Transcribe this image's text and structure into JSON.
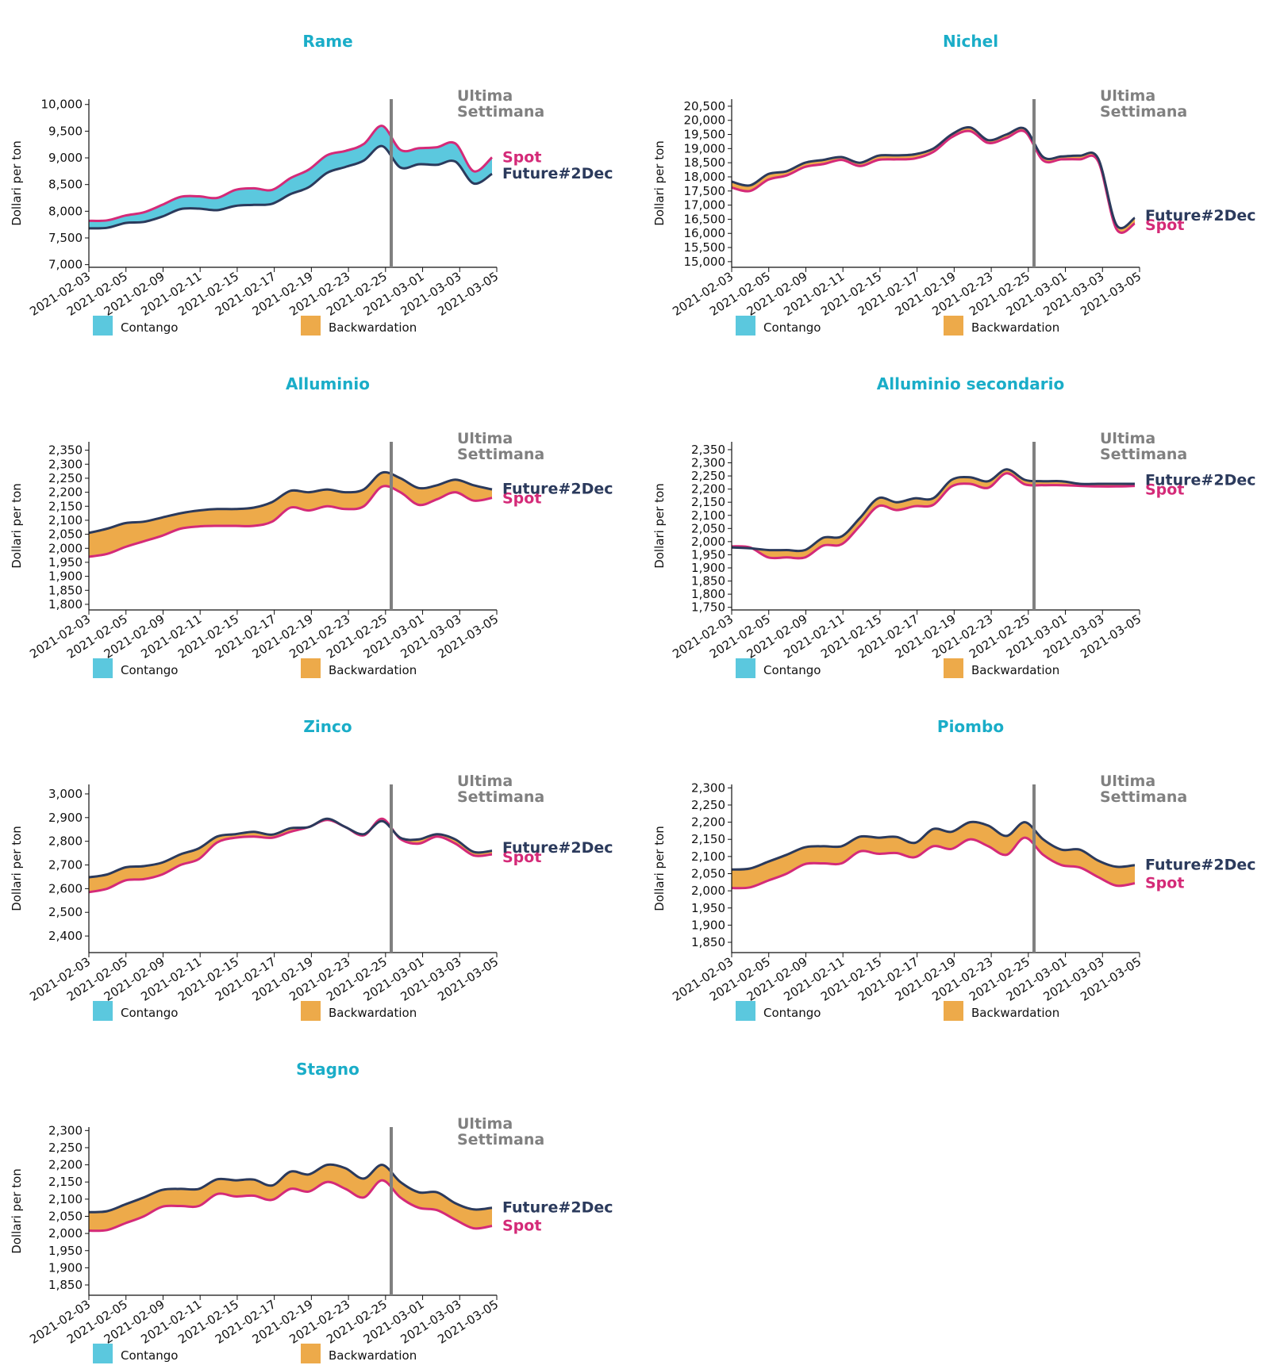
{
  "chart_data": [
    {
      "type": "area",
      "title": "Rame",
      "ylabel": "Dollari per ton",
      "ylim": [
        6950,
        10100
      ],
      "yticks": [
        7000,
        7500,
        8000,
        8500,
        9000,
        9500,
        10000
      ],
      "x": [
        "2021-02-03",
        "2021-02-04",
        "2021-02-05",
        "2021-02-08",
        "2021-02-09",
        "2021-02-10",
        "2021-02-11",
        "2021-02-12",
        "2021-02-15",
        "2021-02-16",
        "2021-02-17",
        "2021-02-18",
        "2021-02-19",
        "2021-02-22",
        "2021-02-23",
        "2021-02-24",
        "2021-02-25",
        "2021-02-26",
        "2021-03-01",
        "2021-03-02",
        "2021-03-03",
        "2021-03-04",
        "2021-03-05"
      ],
      "xtick_labels": [
        "2021-02-03",
        "2021-02-05",
        "2021-02-09",
        "2021-02-11",
        "2021-02-15",
        "2021-02-17",
        "2021-02-19",
        "2021-02-23",
        "2021-02-25",
        "2021-03-01",
        "2021-03-03",
        "2021-03-05"
      ],
      "series": [
        {
          "name": "Spot",
          "values": [
            7820,
            7830,
            7920,
            7980,
            8120,
            8270,
            8280,
            8250,
            8400,
            8430,
            8400,
            8620,
            8780,
            9050,
            9130,
            9260,
            9600,
            9150,
            9180,
            9200,
            9270,
            8750,
            9010
          ]
        },
        {
          "name": "Future#2Dec",
          "values": [
            7680,
            7690,
            7780,
            7800,
            7900,
            8040,
            8050,
            8020,
            8100,
            8120,
            8140,
            8320,
            8450,
            8720,
            8830,
            8950,
            9220,
            8820,
            8880,
            8870,
            8930,
            8520,
            8700
          ]
        }
      ],
      "marker_label": "Ultima Settimana",
      "legend": [
        "Contango",
        "Backwardation"
      ]
    },
    {
      "type": "area",
      "title": "Nichel",
      "ylabel": "Dollari per ton",
      "ylim": [
        14800,
        20750
      ],
      "yticks": [
        15000,
        15500,
        16000,
        16500,
        17000,
        17500,
        18000,
        18500,
        19000,
        19500,
        20000,
        20500
      ],
      "x": [
        "2021-02-03",
        "2021-02-04",
        "2021-02-05",
        "2021-02-08",
        "2021-02-09",
        "2021-02-10",
        "2021-02-11",
        "2021-02-12",
        "2021-02-15",
        "2021-02-16",
        "2021-02-17",
        "2021-02-18",
        "2021-02-19",
        "2021-02-22",
        "2021-02-23",
        "2021-02-24",
        "2021-02-25",
        "2021-02-26",
        "2021-03-01",
        "2021-03-02",
        "2021-03-03",
        "2021-03-04",
        "2021-03-05"
      ],
      "xtick_labels": [
        "2021-02-03",
        "2021-02-05",
        "2021-02-09",
        "2021-02-11",
        "2021-02-15",
        "2021-02-17",
        "2021-02-19",
        "2021-02-23",
        "2021-02-25",
        "2021-03-01",
        "2021-03-03",
        "2021-03-05"
      ],
      "series": [
        {
          "name": "Future#2Dec",
          "values": [
            17830,
            17700,
            18100,
            18200,
            18500,
            18600,
            18700,
            18500,
            18750,
            18760,
            18800,
            19000,
            19500,
            19750,
            19300,
            19500,
            19700,
            18700,
            18720,
            18750,
            18650,
            16300,
            16550
          ]
        },
        {
          "name": "Spot",
          "values": [
            17620,
            17500,
            17900,
            18050,
            18350,
            18450,
            18600,
            18380,
            18600,
            18620,
            18650,
            18880,
            19400,
            19620,
            19200,
            19380,
            19600,
            18580,
            18620,
            18620,
            18550,
            16150,
            16350
          ]
        }
      ],
      "marker_label": "Ultima Settimana",
      "legend": [
        "Contango",
        "Backwardation"
      ]
    },
    {
      "type": "area",
      "title": "Alluminio",
      "ylabel": "Dollari per ton",
      "ylim": [
        1780,
        2380
      ],
      "yticks": [
        1800,
        1850,
        1900,
        1950,
        2000,
        2050,
        2100,
        2150,
        2200,
        2250,
        2300,
        2350
      ],
      "x": [
        "2021-02-03",
        "2021-02-04",
        "2021-02-05",
        "2021-02-08",
        "2021-02-09",
        "2021-02-10",
        "2021-02-11",
        "2021-02-12",
        "2021-02-15",
        "2021-02-16",
        "2021-02-17",
        "2021-02-18",
        "2021-02-19",
        "2021-02-22",
        "2021-02-23",
        "2021-02-24",
        "2021-02-25",
        "2021-02-26",
        "2021-03-01",
        "2021-03-02",
        "2021-03-03",
        "2021-03-04",
        "2021-03-05"
      ],
      "xtick_labels": [
        "2021-02-03",
        "2021-02-05",
        "2021-02-09",
        "2021-02-11",
        "2021-02-15",
        "2021-02-17",
        "2021-02-19",
        "2021-02-23",
        "2021-02-25",
        "2021-03-01",
        "2021-03-03",
        "2021-03-05"
      ],
      "series": [
        {
          "name": "Future#2Dec",
          "values": [
            2055,
            2070,
            2090,
            2095,
            2110,
            2125,
            2135,
            2140,
            2140,
            2145,
            2165,
            2205,
            2200,
            2210,
            2200,
            2210,
            2270,
            2250,
            2215,
            2225,
            2245,
            2225,
            2210
          ]
        },
        {
          "name": "Spot",
          "values": [
            1970,
            1980,
            2005,
            2025,
            2045,
            2070,
            2078,
            2080,
            2080,
            2080,
            2095,
            2145,
            2135,
            2150,
            2140,
            2150,
            2220,
            2200,
            2155,
            2175,
            2200,
            2170,
            2180
          ]
        }
      ],
      "marker_label": "Ultima Settimana",
      "legend": [
        "Contango",
        "Backwardation"
      ]
    },
    {
      "type": "area",
      "title": "Alluminio secondario",
      "ylabel": "Dollari per ton",
      "ylim": [
        1740,
        2380
      ],
      "yticks": [
        1750,
        1800,
        1850,
        1900,
        1950,
        2000,
        2050,
        2100,
        2150,
        2200,
        2250,
        2300,
        2350
      ],
      "x": [
        "2021-02-03",
        "2021-02-04",
        "2021-02-05",
        "2021-02-08",
        "2021-02-09",
        "2021-02-10",
        "2021-02-11",
        "2021-02-12",
        "2021-02-15",
        "2021-02-16",
        "2021-02-17",
        "2021-02-18",
        "2021-02-19",
        "2021-02-22",
        "2021-02-23",
        "2021-02-24",
        "2021-02-25",
        "2021-02-26",
        "2021-03-01",
        "2021-03-02",
        "2021-03-03",
        "2021-03-04",
        "2021-03-05"
      ],
      "xtick_labels": [
        "2021-02-03",
        "2021-02-05",
        "2021-02-09",
        "2021-02-11",
        "2021-02-15",
        "2021-02-17",
        "2021-02-19",
        "2021-02-23",
        "2021-02-25",
        "2021-03-01",
        "2021-03-03",
        "2021-03-05"
      ],
      "series": [
        {
          "name": "Future#2Dec",
          "values": [
            1978,
            1975,
            1968,
            1968,
            1968,
            2015,
            2020,
            2090,
            2165,
            2150,
            2165,
            2165,
            2235,
            2245,
            2230,
            2275,
            2235,
            2230,
            2230,
            2220,
            2220,
            2220,
            2220
          ]
        },
        {
          "name": "Spot",
          "values": [
            1982,
            1978,
            1940,
            1940,
            1940,
            1985,
            1990,
            2060,
            2135,
            2120,
            2135,
            2140,
            2210,
            2220,
            2205,
            2260,
            2218,
            2215,
            2215,
            2212,
            2210,
            2210,
            2212
          ]
        }
      ],
      "marker_label": "Ultima Settimana",
      "legend": [
        "Contango",
        "Backwardation"
      ]
    },
    {
      "type": "area",
      "title": "Zinco",
      "ylabel": "Dollari per ton",
      "ylim": [
        2330,
        3040
      ],
      "yticks": [
        2400,
        2500,
        2600,
        2700,
        2800,
        2900,
        3000
      ],
      "x": [
        "2021-02-03",
        "2021-02-04",
        "2021-02-05",
        "2021-02-08",
        "2021-02-09",
        "2021-02-10",
        "2021-02-11",
        "2021-02-12",
        "2021-02-15",
        "2021-02-16",
        "2021-02-17",
        "2021-02-18",
        "2021-02-19",
        "2021-02-22",
        "2021-02-23",
        "2021-02-24",
        "2021-02-25",
        "2021-02-26",
        "2021-03-01",
        "2021-03-02",
        "2021-03-03",
        "2021-03-04",
        "2021-03-05"
      ],
      "xtick_labels": [
        "2021-02-03",
        "2021-02-05",
        "2021-02-09",
        "2021-02-11",
        "2021-02-15",
        "2021-02-17",
        "2021-02-19",
        "2021-02-23",
        "2021-02-25",
        "2021-03-01",
        "2021-03-03",
        "2021-03-05"
      ],
      "series": [
        {
          "name": "Future#2Dec",
          "values": [
            2648,
            2660,
            2690,
            2695,
            2710,
            2745,
            2770,
            2820,
            2830,
            2840,
            2828,
            2855,
            2860,
            2895,
            2860,
            2830,
            2885,
            2815,
            2808,
            2830,
            2808,
            2755,
            2760
          ]
        },
        {
          "name": "Spot",
          "values": [
            2585,
            2600,
            2635,
            2640,
            2660,
            2700,
            2725,
            2795,
            2815,
            2820,
            2815,
            2840,
            2860,
            2890,
            2860,
            2825,
            2895,
            2810,
            2790,
            2820,
            2790,
            2740,
            2745
          ]
        }
      ],
      "marker_label": "Ultima Settimana",
      "legend": [
        "Contango",
        "Backwardation"
      ]
    },
    {
      "type": "area",
      "title": "Piombo",
      "ylabel": "Dollari per ton",
      "ylim": [
        1820,
        2310
      ],
      "yticks": [
        1850,
        1900,
        1950,
        2000,
        2050,
        2100,
        2150,
        2200,
        2250,
        2300
      ],
      "x": [
        "2021-02-03",
        "2021-02-04",
        "2021-02-05",
        "2021-02-08",
        "2021-02-09",
        "2021-02-10",
        "2021-02-11",
        "2021-02-12",
        "2021-02-15",
        "2021-02-16",
        "2021-02-17",
        "2021-02-18",
        "2021-02-19",
        "2021-02-22",
        "2021-02-23",
        "2021-02-24",
        "2021-02-25",
        "2021-02-26",
        "2021-03-01",
        "2021-03-02",
        "2021-03-03",
        "2021-03-04",
        "2021-03-05"
      ],
      "xtick_labels": [
        "2021-02-03",
        "2021-02-05",
        "2021-02-09",
        "2021-02-11",
        "2021-02-15",
        "2021-02-17",
        "2021-02-19",
        "2021-02-23",
        "2021-02-25",
        "2021-03-01",
        "2021-03-03",
        "2021-03-05"
      ],
      "series": [
        {
          "name": "Future#2Dec",
          "values": [
            2062,
            2065,
            2085,
            2105,
            2127,
            2130,
            2130,
            2158,
            2155,
            2157,
            2140,
            2180,
            2172,
            2200,
            2190,
            2160,
            2200,
            2150,
            2120,
            2120,
            2088,
            2070,
            2075
          ]
        },
        {
          "name": "Spot",
          "values": [
            2008,
            2010,
            2030,
            2050,
            2078,
            2080,
            2080,
            2115,
            2108,
            2110,
            2098,
            2130,
            2122,
            2150,
            2130,
            2105,
            2155,
            2105,
            2075,
            2068,
            2040,
            2015,
            2022
          ]
        }
      ],
      "marker_label": "Ultima Settimana",
      "legend": [
        "Contango",
        "Backwardation"
      ]
    },
    {
      "type": "area",
      "title": "Stagno",
      "ylabel": "Dollari per ton",
      "ylim": [
        1820,
        2310
      ],
      "yticks": [
        1850,
        1900,
        1950,
        2000,
        2050,
        2100,
        2150,
        2200,
        2250,
        2300
      ],
      "x": [
        "2021-02-03",
        "2021-02-04",
        "2021-02-05",
        "2021-02-08",
        "2021-02-09",
        "2021-02-10",
        "2021-02-11",
        "2021-02-12",
        "2021-02-15",
        "2021-02-16",
        "2021-02-17",
        "2021-02-18",
        "2021-02-19",
        "2021-02-22",
        "2021-02-23",
        "2021-02-24",
        "2021-02-25",
        "2021-02-26",
        "2021-03-01",
        "2021-03-02",
        "2021-03-03",
        "2021-03-04",
        "2021-03-05"
      ],
      "xtick_labels": [
        "2021-02-03",
        "2021-02-05",
        "2021-02-09",
        "2021-02-11",
        "2021-02-15",
        "2021-02-17",
        "2021-02-19",
        "2021-02-23",
        "2021-02-25",
        "2021-03-01",
        "2021-03-03",
        "2021-03-05"
      ],
      "series": [
        {
          "name": "Future#2Dec",
          "values": [
            2062,
            2065,
            2085,
            2105,
            2127,
            2130,
            2130,
            2158,
            2155,
            2157,
            2140,
            2180,
            2172,
            2200,
            2190,
            2160,
            2200,
            2150,
            2120,
            2120,
            2088,
            2070,
            2075
          ]
        },
        {
          "name": "Spot",
          "values": [
            2008,
            2010,
            2030,
            2050,
            2078,
            2080,
            2080,
            2115,
            2108,
            2110,
            2098,
            2130,
            2122,
            2150,
            2130,
            2105,
            2155,
            2105,
            2075,
            2068,
            2040,
            2015,
            2022
          ]
        }
      ],
      "marker_label": "Ultima Settimana",
      "legend": [
        "Contango",
        "Backwardation"
      ]
    }
  ],
  "labels": {
    "marker_line1": "Ultima",
    "marker_line2": "Settimana",
    "legend_contango": "Contango",
    "legend_backwardation": "Backwardation"
  },
  "colors": {
    "title": "#1aadc8",
    "spot": "#d42a78",
    "future": "#2b3a5c",
    "contango": "#5bc8de",
    "backwardation": "#edaa4a",
    "marker": "#808080"
  }
}
